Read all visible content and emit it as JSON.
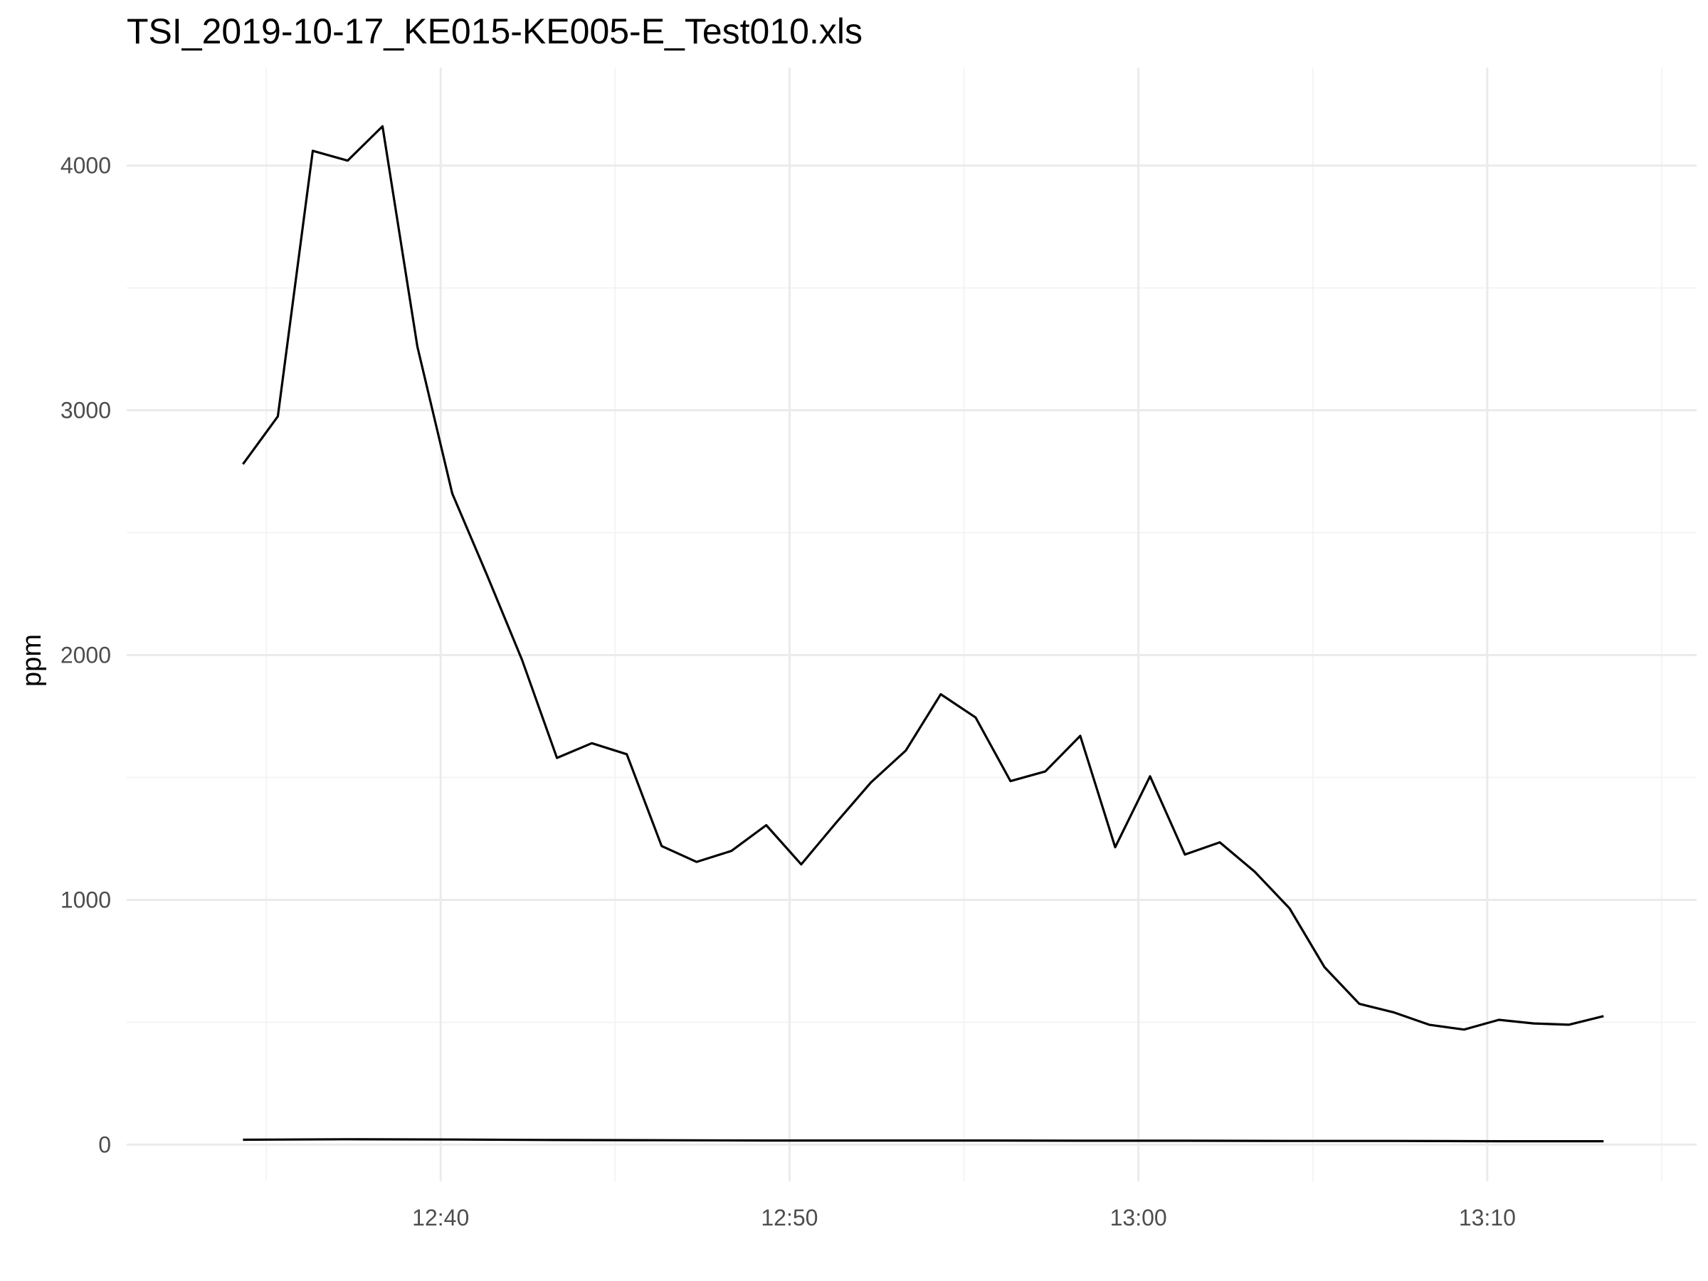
{
  "chart_data": {
    "type": "line",
    "title": "TSI_2019-10-17_KE015-KE005-E_Test010.xls",
    "xlabel": "",
    "ylabel": "ppm",
    "x_type": "time",
    "xlim": [
      "12:31:00",
      "13:16:00"
    ],
    "ylim": [
      -150,
      4400
    ],
    "x_major_ticks": [
      "12:40",
      "12:50",
      "13:00",
      "13:10"
    ],
    "x_minor_ticks": [
      "12:35",
      "12:45",
      "12:55",
      "13:05",
      "13:15"
    ],
    "y_major_ticks": [
      0,
      1000,
      2000,
      3000,
      4000
    ],
    "y_minor_ticks": [
      500,
      1500,
      2500,
      3500
    ],
    "grid": true,
    "legend": "none",
    "series": [
      {
        "color": "#000000",
        "x": [
          "12:34:20",
          "12:35:20",
          "12:36:20",
          "12:37:20",
          "12:38:20",
          "12:39:20",
          "12:40:20",
          "12:41:20",
          "12:42:20",
          "12:43:20",
          "12:44:20",
          "12:45:20",
          "12:46:20",
          "12:47:20",
          "12:48:20",
          "12:49:20",
          "12:50:20",
          "12:51:20",
          "12:52:20",
          "12:53:20",
          "12:54:20",
          "12:55:20",
          "12:56:20",
          "12:57:20",
          "12:58:20",
          "12:59:20",
          "13:00:20",
          "13:01:20",
          "13:02:20",
          "13:03:20",
          "13:04:20",
          "13:05:20",
          "13:06:20",
          "13:07:20",
          "13:08:20",
          "13:09:20",
          "13:10:20",
          "13:11:20",
          "13:12:20",
          "13:13:20"
        ],
        "values": [
          2780,
          2975,
          4060,
          4020,
          4160,
          3260,
          2660,
          2325,
          1980,
          1580,
          1640,
          1595,
          1220,
          1155,
          1200,
          1305,
          1145,
          1315,
          1480,
          1610,
          1840,
          1745,
          1485,
          1525,
          1670,
          1215,
          1505,
          1185,
          1235,
          1115,
          965,
          725,
          575,
          540,
          490,
          470,
          510,
          495,
          490,
          525
        ]
      },
      {
        "color": "#000000",
        "x": [
          "12:34:20",
          "12:37:20",
          "12:40:20",
          "12:43:20",
          "12:46:20",
          "12:49:20",
          "12:52:20",
          "12:55:20",
          "12:58:20",
          "13:01:20",
          "13:04:20",
          "13:07:20",
          "13:10:20",
          "13:13:20"
        ],
        "values": [
          20,
          22,
          21,
          19,
          18,
          17,
          17,
          17,
          16,
          16,
          15,
          15,
          14,
          14
        ]
      }
    ]
  }
}
